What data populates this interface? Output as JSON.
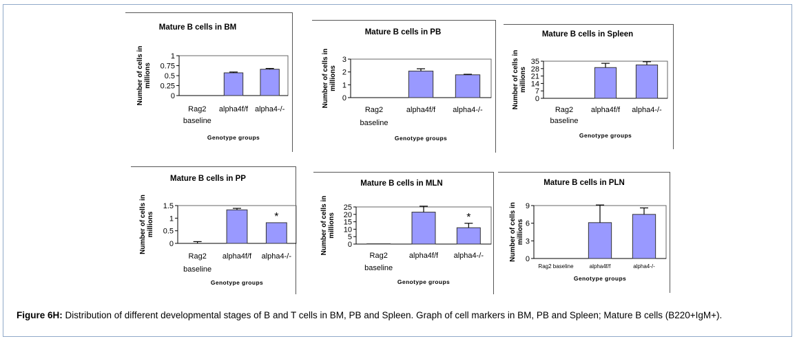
{
  "caption": {
    "label": "Figure 6H:",
    "text": " Distribution of different developmental stages of B and T cells in BM, PB and Spleen. Graph of cell markers in BM, PB and Spleen; Mature B cells (B220+IgM+)."
  },
  "colors": {
    "bar_fill": "#9999ff",
    "bar_stroke": "#333333",
    "axis": "#000000"
  },
  "chart_data": [
    {
      "type": "bar",
      "title": "Mature B cells  in BM",
      "ylabel": "Number of cells in millions",
      "xlabel": "Genotype groups",
      "categories": [
        [
          "Rag2",
          "baseline"
        ],
        [
          "alpha4f/f"
        ],
        [
          "alpha4-/-"
        ]
      ],
      "values": [
        0,
        0.57,
        0.66
      ],
      "errors": [
        0,
        0.02,
        0.02
      ],
      "ylim": [
        0,
        1
      ],
      "yticks": [
        0,
        0.25,
        0.5,
        0.75,
        1
      ],
      "ytick_labels": [
        "0",
        "0.25",
        "0.5",
        "0.75",
        "1"
      ],
      "annotations": [
        "",
        "",
        ""
      ]
    },
    {
      "type": "bar",
      "title": "Mature B cells  in PB",
      "ylabel": "Number of cells in millions",
      "xlabel": "Genotype groups",
      "categories": [
        [
          "Rag2",
          "baseline"
        ],
        [
          "alpha4f/f"
        ],
        [
          "alpha4-/-"
        ]
      ],
      "values": [
        0,
        2.07,
        1.78
      ],
      "errors": [
        0,
        0.18,
        0.04
      ],
      "ylim": [
        0,
        3
      ],
      "yticks": [
        0,
        1,
        2,
        3
      ],
      "ytick_labels": [
        "0",
        "1",
        "2",
        "3"
      ],
      "annotations": [
        "",
        "",
        ""
      ]
    },
    {
      "type": "bar",
      "title": "Mature B cells  in Spleen",
      "ylabel": "Number of cells in millions",
      "xlabel": "Genotype groups",
      "categories": [
        [
          "Rag2",
          "baseline"
        ],
        [
          "alpha4f/f"
        ],
        [
          "alpha4-/-"
        ]
      ],
      "values": [
        0,
        29,
        31.5
      ],
      "errors": [
        0,
        4,
        3
      ],
      "ylim": [
        0,
        35
      ],
      "yticks": [
        0,
        7,
        14,
        21,
        28,
        35
      ],
      "ytick_labels": [
        "0",
        "7",
        "14",
        "21",
        "28",
        "35"
      ],
      "annotations": [
        "",
        "",
        ""
      ]
    },
    {
      "type": "bar",
      "title": "Mature B cells  in PP",
      "ylabel": "Number of cells in millions",
      "xlabel": "Genotype groups",
      "categories": [
        [
          "Rag2",
          "baseline"
        ],
        [
          "alpha4f/f"
        ],
        [
          "alpha4-/-"
        ]
      ],
      "values": [
        0,
        1.33,
        0.82
      ],
      "errors": [
        0.07,
        0.06,
        0
      ],
      "ylim": [
        0,
        1.5
      ],
      "yticks": [
        0,
        0.5,
        1,
        1.5
      ],
      "ytick_labels": [
        "0",
        "0.5",
        "1",
        "1.5"
      ],
      "annotations": [
        "",
        "",
        "*"
      ]
    },
    {
      "type": "bar",
      "title": "Mature B cells  in MLN",
      "ylabel": "Number of cells in millions",
      "xlabel": "Genotype groups",
      "categories": [
        [
          "Rag2",
          "baseline"
        ],
        [
          "alpha4f/f"
        ],
        [
          "alpha4-/-"
        ]
      ],
      "values": [
        0.2,
        21.5,
        11
      ],
      "errors": [
        0,
        4,
        3
      ],
      "ylim": [
        0,
        25
      ],
      "yticks": [
        0,
        5,
        10,
        15,
        20,
        25
      ],
      "ytick_labels": [
        "0",
        "5",
        "10",
        "15",
        "20",
        "25"
      ],
      "annotations": [
        "",
        "",
        "*"
      ]
    },
    {
      "type": "bar",
      "title": "Mature B cells  in PLN",
      "ylabel": "Number of cells in millions",
      "xlabel": "Genotype groups",
      "categories": [
        [
          "Rag2 baseline"
        ],
        [
          "alpha4f/f"
        ],
        [
          "alpha4-/-"
        ]
      ],
      "values": [
        0,
        6.1,
        7.5
      ],
      "errors": [
        0,
        3,
        1.1
      ],
      "ylim": [
        0,
        9
      ],
      "yticks": [
        0,
        3,
        6,
        9
      ],
      "ytick_labels": [
        "0",
        "3",
        "6",
        "9"
      ],
      "annotations": [
        "",
        "",
        ""
      ]
    }
  ]
}
